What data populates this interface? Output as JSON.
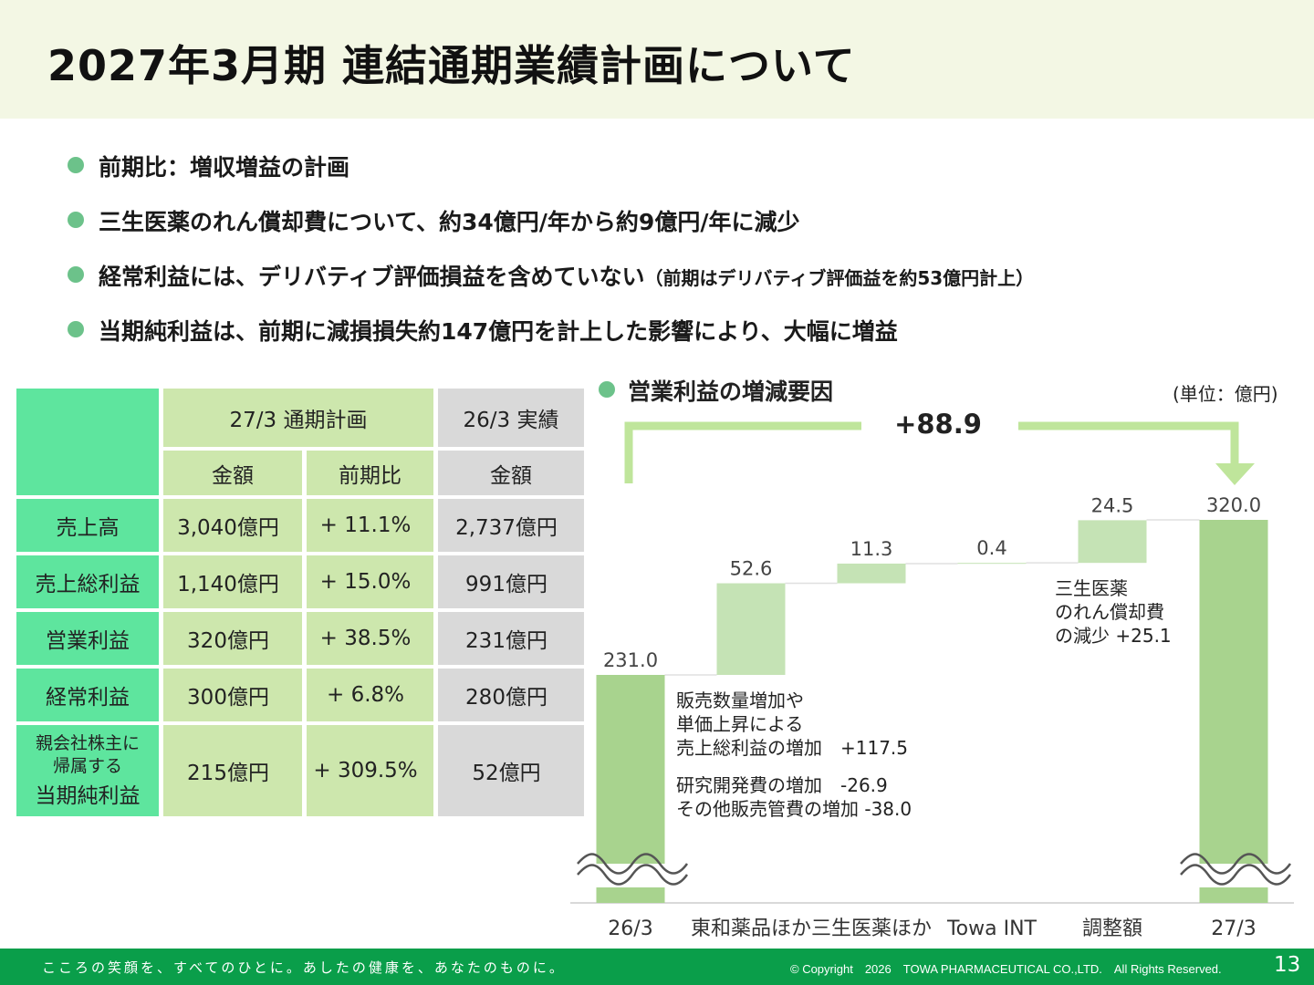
{
  "title": "2027年3月期 連結通期業績計画について",
  "bullets": [
    {
      "text": "前期比：増収増益の計画",
      "note": ""
    },
    {
      "text": "三生医薬のれん償却費について、約34億円/年から約9億円/年に減少",
      "note": ""
    },
    {
      "text": "経常利益には、デリバティブ評価損益を含めていない",
      "note": "（前期はデリバティブ評価益を約53億円計上）"
    },
    {
      "text": "当期純利益は、前期に減損損失約147億円を計上した影響により、大幅に増益",
      "note": ""
    }
  ],
  "table": {
    "plan_header": "27/3 通期計画",
    "actual_header": "26/3 実績",
    "col_amount": "金額",
    "col_yoy": "前期比",
    "col_actual_amount": "金額",
    "rows": [
      {
        "label": "売上高",
        "plan": "3,040億円",
        "yoy": "+ 11.1%",
        "actual": "2,737億円"
      },
      {
        "label": "売上総利益",
        "plan": "1,140億円",
        "yoy": "+ 15.0%",
        "actual": "991億円"
      },
      {
        "label": "営業利益",
        "plan": "320億円",
        "yoy": "+ 38.5%",
        "actual": "231億円"
      },
      {
        "label": "経常利益",
        "plan": "300億円",
        "yoy": "+ 6.8%",
        "actual": "280億円"
      }
    ],
    "last_row": {
      "label_line1": "親会社株主に",
      "label_line2": "帰属する",
      "label_line3": "当期純利益",
      "plan": "215億円",
      "yoy": "+ 309.5%",
      "actual": "52億円"
    }
  },
  "chart_title": "営業利益の増減要因",
  "unit": "(単位：億円)",
  "chart_data": {
    "type": "bar",
    "subtype": "waterfall",
    "title": "営業利益の増減要因",
    "unit": "(単位：億円)",
    "categories": [
      "26/3",
      "東和薬品ほか",
      "三生医薬ほか",
      "Towa INT",
      "調整額",
      "27/3"
    ],
    "values": [
      231.0,
      52.6,
      11.3,
      0.4,
      24.5,
      320.0
    ],
    "value_labels": [
      "231.0",
      "52.6",
      "11.3",
      "0.4",
      "24.5",
      "320.0"
    ],
    "bar_kind": [
      "total",
      "delta",
      "delta",
      "delta",
      "delta",
      "total"
    ],
    "axis_break": true,
    "total_change_label": "+88.9",
    "colors": {
      "total": "#a8d38e",
      "delta": "#c5e3b5",
      "arrow": "#bfe59b"
    },
    "annotations": [
      {
        "lines": [
          "販売数量増加や",
          "単価上昇による",
          "売上総利益の増加　+117.5"
        ]
      },
      {
        "lines": [
          "研究開発費の増加　-26.9",
          "その他販売管費の増加 -38.0"
        ]
      },
      {
        "lines": [
          "三生医薬",
          "のれん償却費",
          "の減少 +25.1"
        ]
      }
    ]
  },
  "footer": {
    "slogan": "こころの笑顔を、すべてのひとに。あしたの健康を、あなたのものに。",
    "copyright": "© Copyright　2026　TOWA PHARMACEUTICAL CO.,LTD.　All Rights Reserved.",
    "page": "13"
  }
}
